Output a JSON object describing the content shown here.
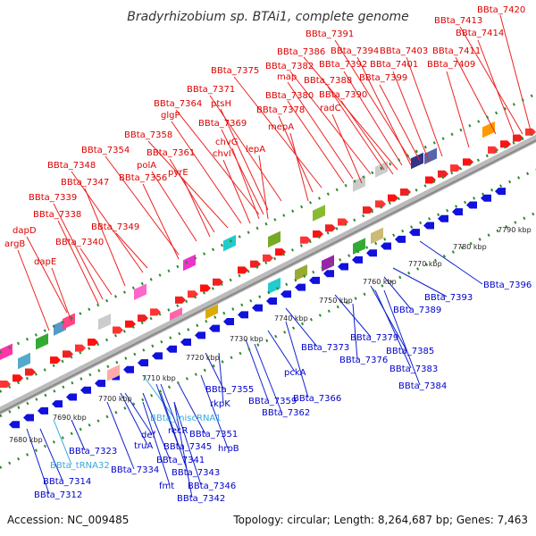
{
  "title": "Bradyrhizobium sp. BTAi1, complete genome",
  "accession": "Accession: NC_009485",
  "topology": "Topology: circular; Length: 8,264,687 bp; Genes: 7,463",
  "colors": {
    "forward_label": "#dd0000",
    "reverse_label": "#0000cc",
    "rna_label": "#33aadd",
    "backbone": "#999999",
    "tick": "#338833"
  },
  "kbp_labels": [
    "7680 kbp",
    "7690 kbp",
    "7700 kbp",
    "7710 kbp",
    "7720 kbp",
    "7730 kbp",
    "7740 kbp",
    "7750 kbp",
    "7760 kbp",
    "7770 kbp",
    "7780 kbp",
    "7790 kbp"
  ],
  "top_labels": [
    "BBta_7420",
    "BBta_7413",
    "BBta_7414",
    "BBta_7391",
    "BBta_7411",
    "BBta_7386",
    "BBta_7394",
    "BBta_7403",
    "BBta_7382",
    "BBta_7392",
    "BBta_7401",
    "BBta_7409",
    "BBta_7375",
    "map",
    "BBta_7388",
    "BBta_7399",
    "BBta_7371",
    "BBta_7380",
    "BBta_7390",
    "ptsH",
    "BBta_7364",
    "BBta_7378",
    "radC",
    "glgP",
    "BBta_7369",
    "mepA",
    "BBta_7358",
    "chvG",
    "BBta_7361",
    "chvI",
    "lepA",
    "BBta_7354",
    "polA",
    "pyrE",
    "BBta_7348",
    "BBta_7356",
    "BBta_7347",
    "BBta_7339",
    "BBta_7338",
    "dapD",
    "BBta_7349",
    "argB",
    "BBta_7340",
    "dapE"
  ],
  "bottom_labels": [
    "BBta_7396",
    "BBta_7393",
    "BBta_7389",
    "BBta_7379",
    "BBta_7373",
    "BBta_7385",
    "BBta_7376",
    "BBta_7383",
    "pckA",
    "BBta_7384",
    "BBta_7366",
    "BBta_7355",
    "BBta_7359",
    "rkpK",
    "BBta_7362",
    "BBta_miscRNA1",
    "recR",
    "def",
    "BBta_7351",
    "truA",
    "BBta_7345",
    "hrpB",
    "BBta_7323",
    "BBta_7341",
    "BBta_tRNA32",
    "BBta_7334",
    "BBta_7343",
    "fmt",
    "BBta_7314",
    "BBta_7346",
    "BBta_7312",
    "BBta_7342"
  ]
}
